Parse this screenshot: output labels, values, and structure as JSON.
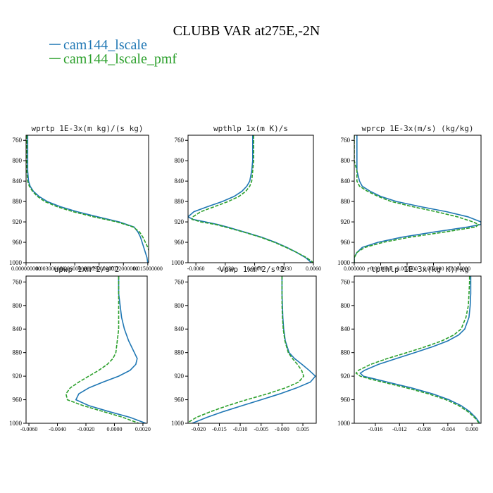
{
  "figure": {
    "title": "CLUBB VAR at275E,-2N"
  },
  "legend": [
    {
      "label": "cam144_lscale",
      "color": "#1f77b4",
      "dash": "solid"
    },
    {
      "label": "cam144_lscale_pmf",
      "color": "#2ca02c",
      "dash": "dashed"
    }
  ],
  "chart_data": [
    {
      "type": "line",
      "title": "wprtp  1E-3x(m kg)/(s kg)",
      "xlim": [
        0.0,
        0.0151
      ],
      "ylim": [
        1000,
        750
      ],
      "xticks": [
        0.0,
        0.003,
        0.006,
        0.009,
        0.012,
        0.015
      ],
      "xtick_labels": [
        "0.000000000",
        "0.003000000",
        "0.006000000",
        "0.009000000",
        "0.012000000",
        "0.015000000"
      ],
      "yticks": [
        760,
        800,
        840,
        880,
        920,
        960,
        1000
      ],
      "ytick_labels": [
        "760",
        "800",
        "840",
        "880",
        "920",
        "960",
        "1000"
      ],
      "y": [
        750,
        760,
        780,
        800,
        820,
        840,
        850,
        860,
        870,
        880,
        890,
        900,
        910,
        920,
        930,
        940,
        950,
        960,
        970,
        980,
        990,
        1000
      ],
      "series": [
        {
          "name": "cam144_lscale",
          "color": "#1f77b4",
          "dash": "solid",
          "x": [
            0.0002,
            0.0002,
            0.0002,
            0.0002,
            0.0002,
            0.0003,
            0.0005,
            0.0009,
            0.0016,
            0.0026,
            0.0042,
            0.0063,
            0.0088,
            0.0115,
            0.0133,
            0.0138,
            0.0141,
            0.0143,
            0.0145,
            0.0147,
            0.0149,
            0.015
          ]
        },
        {
          "name": "cam144_lscale_pmf",
          "color": "#2ca02c",
          "dash": "dashed",
          "x": [
            0.0001,
            0.0001,
            0.0001,
            0.0001,
            0.0001,
            0.0002,
            0.0004,
            0.0008,
            0.0014,
            0.0023,
            0.0038,
            0.0058,
            0.0083,
            0.0112,
            0.0132,
            0.014,
            0.0144,
            0.0147,
            0.015,
            0.0152,
            0.0153,
            0.0154
          ]
        }
      ]
    },
    {
      "type": "line",
      "title": "wpthlp  1x(m K)/s",
      "xlim": [
        -0.0068,
        0.006
      ],
      "ylim": [
        1000,
        750
      ],
      "xticks": [
        -0.006,
        -0.003,
        0.0,
        0.003,
        0.006
      ],
      "xtick_labels": [
        "-0.0060",
        "-0.0030",
        "0.0000",
        "0.0030",
        "0.0060"
      ],
      "yticks": [
        760,
        800,
        840,
        880,
        920,
        960,
        1000
      ],
      "ytick_labels": [
        "760",
        "800",
        "840",
        "880",
        "920",
        "960",
        "1000"
      ],
      "y": [
        750,
        760,
        780,
        800,
        820,
        840,
        850,
        860,
        870,
        880,
        890,
        900,
        910,
        915,
        920,
        925,
        930,
        940,
        950,
        960,
        970,
        980,
        990,
        1000
      ],
      "series": [
        {
          "name": "cam144_lscale",
          "color": "#1f77b4",
          "dash": "solid",
          "x": [
            -0.0002,
            -0.0002,
            -0.0002,
            -0.0002,
            -0.0003,
            -0.0005,
            -0.0008,
            -0.0013,
            -0.0021,
            -0.0033,
            -0.0048,
            -0.0062,
            -0.0068,
            -0.0063,
            -0.005,
            -0.0038,
            -0.0028,
            -0.001,
            0.0007,
            0.0021,
            0.0033,
            0.0043,
            0.0052,
            0.0058
          ]
        },
        {
          "name": "cam144_lscale_pmf",
          "color": "#2ca02c",
          "dash": "dashed",
          "x": [
            -0.0001,
            -0.0001,
            -0.0001,
            -0.0001,
            -0.0002,
            -0.0003,
            -0.0005,
            -0.0009,
            -0.0016,
            -0.0027,
            -0.0041,
            -0.0055,
            -0.0063,
            -0.0064,
            -0.0055,
            -0.004,
            -0.003,
            -0.0011,
            0.0006,
            0.002,
            0.0032,
            0.0043,
            0.0053,
            0.006
          ]
        }
      ]
    },
    {
      "type": "line",
      "title": "wprcp  1E-3x(m/s) (kg/kg)",
      "xlim": [
        0.0,
        0.0048
      ],
      "ylim": [
        1000,
        750
      ],
      "xticks": [
        0.0,
        0.001,
        0.002,
        0.003,
        0.004
      ],
      "xtick_labels": [
        "0.000000",
        "0.001000",
        "0.002000",
        "0.003000",
        "0.004000"
      ],
      "yticks": [
        760,
        800,
        840,
        880,
        920,
        960,
        1000
      ],
      "ytick_labels": [
        "760",
        "800",
        "840",
        "880",
        "920",
        "960",
        "1000"
      ],
      "y": [
        750,
        760,
        780,
        800,
        820,
        840,
        850,
        860,
        870,
        880,
        890,
        900,
        910,
        920,
        925,
        930,
        940,
        950,
        960,
        970,
        980,
        990,
        1000
      ],
      "series": [
        {
          "name": "cam144_lscale",
          "color": "#1f77b4",
          "dash": "solid",
          "x": [
            0.0001,
            0.0001,
            0.0001,
            0.0001,
            0.0001,
            0.0002,
            0.0003,
            0.0006,
            0.001,
            0.0016,
            0.0025,
            0.0035,
            0.0043,
            0.0048,
            0.0048,
            0.0043,
            0.003,
            0.0018,
            0.0009,
            0.0003,
            0.0001,
            0.0,
            0.0
          ]
        },
        {
          "name": "cam144_lscale_pmf",
          "color": "#2ca02c",
          "dash": "dashed",
          "x": [
            0.0,
            0.0,
            0.0,
            0.0,
            0.0001,
            0.0001,
            0.0002,
            0.0005,
            0.0009,
            0.0014,
            0.0022,
            0.0031,
            0.0039,
            0.0045,
            0.0047,
            0.0046,
            0.0034,
            0.0021,
            0.0011,
            0.0004,
            0.0001,
            0.0,
            0.0
          ]
        }
      ]
    },
    {
      "type": "line",
      "title": "upwp   1xm^2/s^2",
      "xlim": [
        -0.0062,
        0.0023
      ],
      "ylim": [
        1000,
        750
      ],
      "xticks": [
        -0.006,
        -0.004,
        -0.002,
        0.0,
        0.002
      ],
      "xtick_labels": [
        "-0.0060",
        "-0.0040",
        "-0.0020",
        "0.0000",
        "0.0020"
      ],
      "yticks": [
        760,
        800,
        840,
        880,
        920,
        960,
        1000
      ],
      "ytick_labels": [
        "760",
        "800",
        "840",
        "880",
        "920",
        "960",
        "1000"
      ],
      "y": [
        750,
        760,
        780,
        800,
        820,
        840,
        860,
        880,
        890,
        900,
        910,
        920,
        930,
        940,
        950,
        960,
        970,
        980,
        990,
        1000
      ],
      "series": [
        {
          "name": "cam144_lscale",
          "color": "#1f77b4",
          "dash": "solid",
          "x": [
            0.0003,
            0.0003,
            0.0003,
            0.0004,
            0.0005,
            0.0007,
            0.001,
            0.0014,
            0.0016,
            0.0015,
            0.0011,
            0.0003,
            -0.0008,
            -0.0018,
            -0.0025,
            -0.0027,
            -0.0018,
            -0.0004,
            0.0011,
            0.0022
          ]
        },
        {
          "name": "cam144_lscale_pmf",
          "color": "#2ca02c",
          "dash": "dashed",
          "x": [
            0.0003,
            0.0003,
            0.0003,
            0.0003,
            0.0003,
            0.0003,
            0.0002,
            0.0001,
            -0.0001,
            -0.0005,
            -0.0011,
            -0.0018,
            -0.0025,
            -0.0031,
            -0.0034,
            -0.0033,
            -0.0022,
            -0.0008,
            0.0006,
            0.0017
          ]
        }
      ]
    },
    {
      "type": "line",
      "title": "vpwp   1xm^2/s^2",
      "xlim": [
        -0.0225,
        0.0082
      ],
      "ylim": [
        1000,
        750
      ],
      "xticks": [
        -0.02,
        -0.015,
        -0.01,
        -0.005,
        0.0,
        0.005
      ],
      "xtick_labels": [
        "-0.020",
        "-0.015",
        "-0.010",
        "-0.005",
        "-0.000",
        "0.005"
      ],
      "yticks": [
        760,
        800,
        840,
        880,
        920,
        960,
        1000
      ],
      "ytick_labels": [
        "760",
        "800",
        "840",
        "880",
        "920",
        "960",
        "1000"
      ],
      "y": [
        750,
        760,
        780,
        800,
        820,
        840,
        860,
        880,
        890,
        900,
        910,
        920,
        930,
        940,
        950,
        960,
        970,
        980,
        990,
        1000
      ],
      "series": [
        {
          "name": "cam144_lscale",
          "color": "#1f77b4",
          "dash": "solid",
          "x": [
            0.0,
            0.0,
            0.0,
            0.0001,
            0.0002,
            0.0004,
            0.0008,
            0.0017,
            0.003,
            0.0048,
            0.0065,
            0.008,
            0.0068,
            0.0035,
            -0.0005,
            -0.005,
            -0.0095,
            -0.014,
            -0.018,
            -0.0215
          ]
        },
        {
          "name": "cam144_lscale_pmf",
          "color": "#2ca02c",
          "dash": "dashed",
          "x": [
            0.0,
            0.0,
            0.0,
            0.0,
            0.0001,
            0.0003,
            0.0007,
            0.0015,
            0.0025,
            0.0037,
            0.0047,
            0.0052,
            0.004,
            0.0008,
            -0.0035,
            -0.0085,
            -0.013,
            -0.017,
            -0.0205,
            -0.0228
          ]
        }
      ]
    },
    {
      "type": "line",
      "title": "rtpthlp  1E-3x(kg K)/kg",
      "xlim": [
        -0.0195,
        0.0015
      ],
      "ylim": [
        1000,
        750
      ],
      "xticks": [
        -0.016,
        -0.012,
        -0.008,
        -0.004,
        0.0
      ],
      "xtick_labels": [
        "-0.016",
        "-0.012",
        "-0.008",
        "-0.004",
        "0.000"
      ],
      "yticks": [
        760,
        800,
        840,
        880,
        920,
        960,
        1000
      ],
      "ytick_labels": [
        "760",
        "800",
        "840",
        "880",
        "920",
        "960",
        "1000"
      ],
      "y": [
        750,
        760,
        780,
        800,
        820,
        840,
        850,
        860,
        870,
        880,
        890,
        900,
        910,
        915,
        920,
        925,
        930,
        940,
        950,
        960,
        970,
        980,
        990,
        1000
      ],
      "series": [
        {
          "name": "cam144_lscale",
          "color": "#1f77b4",
          "dash": "solid",
          "x": [
            -0.0002,
            -0.0002,
            -0.0002,
            -0.0003,
            -0.0005,
            -0.0012,
            -0.0022,
            -0.004,
            -0.0065,
            -0.0095,
            -0.0125,
            -0.0155,
            -0.0178,
            -0.0185,
            -0.018,
            -0.016,
            -0.014,
            -0.01,
            -0.0065,
            -0.0038,
            -0.0018,
            -0.0004,
            0.0006,
            0.0013
          ]
        },
        {
          "name": "cam144_lscale_pmf",
          "color": "#2ca02c",
          "dash": "dashed",
          "x": [
            -0.0004,
            -0.0004,
            -0.0005,
            -0.0006,
            -0.001,
            -0.0018,
            -0.003,
            -0.005,
            -0.0077,
            -0.0108,
            -0.014,
            -0.0168,
            -0.0188,
            -0.0192,
            -0.0185,
            -0.0168,
            -0.0148,
            -0.0108,
            -0.0072,
            -0.0043,
            -0.0022,
            -0.0007,
            0.0004,
            0.0012
          ]
        }
      ]
    }
  ]
}
